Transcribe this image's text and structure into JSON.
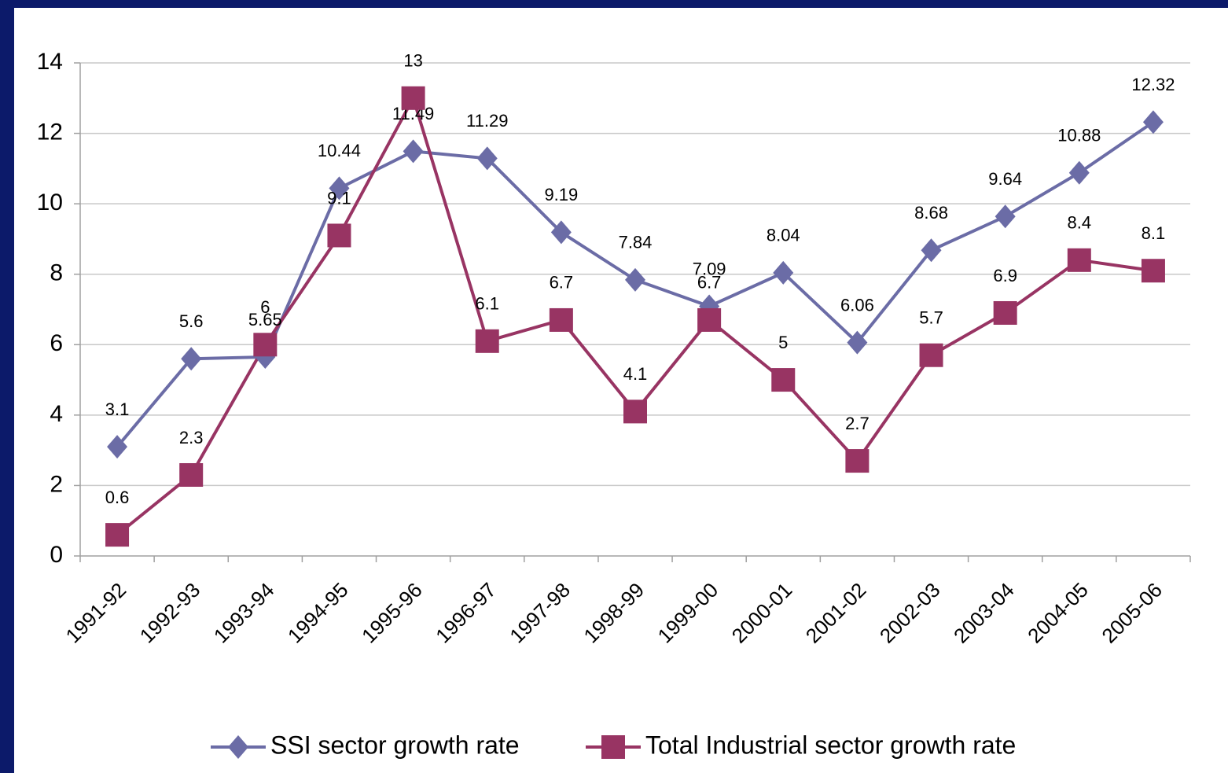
{
  "chart_data": {
    "type": "line",
    "categories": [
      "1991-92",
      "1992-93",
      "1993-94",
      "1994-95",
      "1995-96",
      "1996-97",
      "1997-98",
      "1998-99",
      "1999-00",
      "2000-01",
      "2001-02",
      "2002-03",
      "2003-04",
      "2004-05",
      "2005-06"
    ],
    "series": [
      {
        "name": "SSI sector growth rate",
        "color": "#6b6ca6",
        "marker": "diamond",
        "values": [
          3.1,
          5.6,
          5.65,
          10.44,
          11.49,
          11.29,
          9.19,
          7.84,
          7.09,
          8.04,
          6.06,
          8.68,
          9.64,
          10.88,
          12.32
        ]
      },
      {
        "name": "Total Industrial sector growth rate",
        "color": "#983463",
        "marker": "square",
        "values": [
          0.6,
          2.3,
          6,
          9.1,
          13,
          6.1,
          6.7,
          4.1,
          6.7,
          5,
          2.7,
          5.7,
          6.9,
          8.4,
          8.1
        ]
      }
    ],
    "ylim": [
      0,
      14
    ],
    "yticks": [
      0,
      2,
      4,
      6,
      8,
      10,
      12,
      14
    ],
    "grid": true,
    "legend": "bottom"
  }
}
